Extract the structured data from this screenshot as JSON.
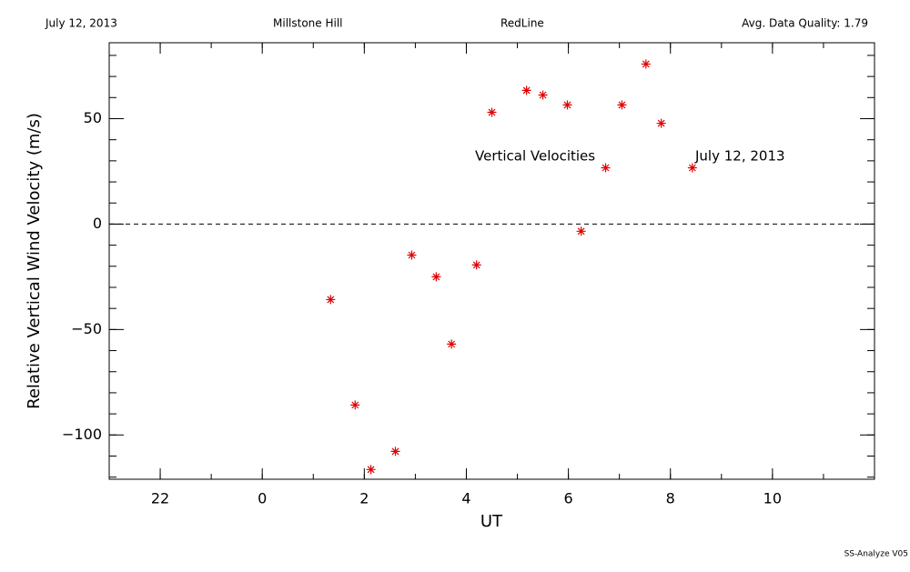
{
  "chart_data": {
    "type": "scatter",
    "header": [
      "July 12, 2013",
      "Millstone Hill",
      "RedLine",
      "Avg. Data Quality: 1.79"
    ],
    "xlabel": "UT",
    "ylabel": "Relative Vertical Wind Velocity (m/s)",
    "annotations": [
      "Vertical Velocities",
      "July 12, 2013"
    ],
    "footer": "SS-Analyze V05",
    "xlim": [
      -3,
      12
    ],
    "ylim": [
      -121,
      86
    ],
    "xticks": [
      {
        "value": -2,
        "label": "22"
      },
      0,
      2,
      4,
      6,
      8,
      10
    ],
    "yticks": [
      {
        "value": -100,
        "label": "−100"
      },
      {
        "value": -50,
        "label": "−50"
      },
      0,
      50
    ],
    "x_minor_step": 1,
    "y_minor_step": 10,
    "reference_line": 0,
    "series": [
      {
        "color": "#e00000",
        "x": [
          1.34,
          1.82,
          2.13,
          2.61,
          2.93,
          3.41,
          3.71,
          4.2,
          4.5,
          5.18,
          5.5,
          5.98,
          6.25,
          6.73,
          7.05,
          7.52,
          7.82,
          8.43
        ],
        "values": [
          -35.8,
          -85.8,
          -116.4,
          -107.8,
          -14.7,
          -25.0,
          -56.9,
          -19.4,
          53.0,
          63.4,
          61.2,
          56.5,
          -3.4,
          26.7,
          56.5,
          75.9,
          47.8,
          26.7
        ]
      }
    ]
  }
}
